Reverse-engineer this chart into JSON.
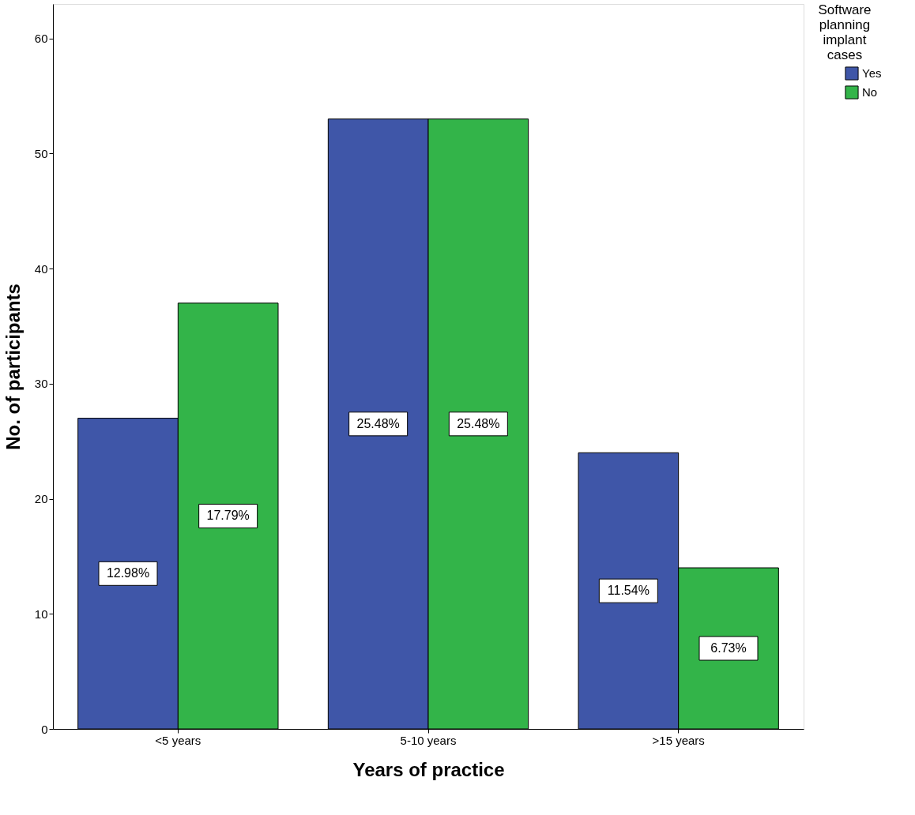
{
  "chart_data": {
    "type": "bar",
    "xlabel": "Years of practice",
    "ylabel": "No. of participants",
    "legend_title": "Software planning implant cases",
    "categories": [
      "<5 years",
      "5-10 years",
      ">15 years"
    ],
    "series": [
      {
        "name": "Yes",
        "color": "#3f56a8",
        "values": [
          27,
          53,
          24
        ]
      },
      {
        "name": "No",
        "color": "#33b449",
        "values": [
          37,
          53,
          14
        ]
      }
    ],
    "annotations": [
      {
        "text": "12.98%",
        "x": "<5 years",
        "y": 13.5
      },
      {
        "text": "17.79%",
        "x": "<5 years",
        "y": 18.5
      },
      {
        "text": "25.48%",
        "x": "5-10 years",
        "y": 26.5
      },
      {
        "text": "25.48%",
        "x": "5-10 years",
        "y": 26.5
      },
      {
        "text": "11.54%",
        "x": ">15 years",
        "y": 12
      },
      {
        "text": "6.73%",
        "x": ">15 years",
        "y": 7
      }
    ],
    "ylim": [
      0,
      63
    ],
    "yticks": [
      0,
      10,
      20,
      30,
      40,
      50,
      60
    ],
    "grid": false,
    "legend": "top right"
  }
}
